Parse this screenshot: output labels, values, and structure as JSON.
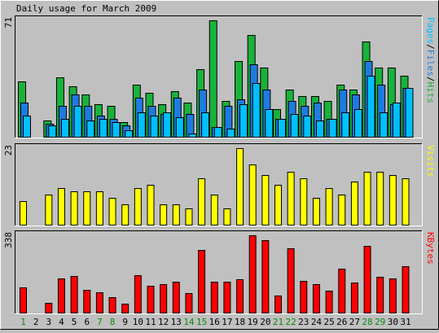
{
  "title": "Daily usage for March 2009",
  "colors": {
    "background": "#c0c0c0",
    "panel": "#c0c0c0",
    "hits": "#19b23a",
    "files": "#1e7be0",
    "pages": "#00bfff",
    "visits": "#ffff00",
    "kbytes": "#ff0000",
    "weekday_label": "#000000",
    "weekend_label": "#0a8a0a"
  },
  "chart_data": [
    {
      "type": "bar",
      "panel": "hits-files-pages",
      "ymax_label": "71",
      "ymax": 71,
      "right_label": [
        {
          "text": "Pages",
          "color": "#00bfff"
        },
        {
          "text": "/",
          "color": "#000000"
        },
        {
          "text": "Files",
          "color": "#1e7be0"
        },
        {
          "text": "/",
          "color": "#000000"
        },
        {
          "text": "Hits",
          "color": "#19b23a"
        }
      ],
      "categories": [
        "1",
        "2",
        "3",
        "4",
        "5",
        "6",
        "7",
        "8",
        "9",
        "10",
        "11",
        "12",
        "13",
        "14",
        "15",
        "16",
        "17",
        "18",
        "19",
        "20",
        "21",
        "22",
        "23",
        "24",
        "25",
        "26",
        "27",
        "28",
        "29",
        "30",
        "31"
      ],
      "series": [
        {
          "name": "Hits",
          "color": "#19b23a",
          "values": [
            34,
            0,
            10,
            36,
            31,
            26,
            20,
            19,
            9,
            32,
            27,
            20,
            28,
            21,
            41,
            71,
            22,
            46,
            62,
            42,
            17,
            29,
            25,
            25,
            22,
            32,
            29,
            58,
            42,
            42,
            37
          ]
        },
        {
          "name": "Files",
          "color": "#1e7be0",
          "values": [
            21,
            0,
            8,
            19,
            26,
            19,
            13,
            11,
            7,
            24,
            19,
            14,
            24,
            14,
            29,
            6,
            19,
            23,
            44,
            29,
            11,
            22,
            19,
            21,
            11,
            29,
            26,
            46,
            32,
            20,
            30
          ]
        },
        {
          "name": "Pages",
          "color": "#00bfff",
          "values": [
            13,
            0,
            7,
            11,
            19,
            10,
            11,
            9,
            4,
            15,
            13,
            15,
            12,
            2,
            15,
            6,
            5,
            20,
            33,
            17,
            11,
            14,
            13,
            10,
            11,
            15,
            17,
            37,
            15,
            21,
            30
          ]
        }
      ]
    },
    {
      "type": "bar",
      "panel": "visits",
      "ymax_label": "23",
      "ymax": 23,
      "right_label": [
        {
          "text": "Visits",
          "color": "#ffff00"
        }
      ],
      "categories": [
        "1",
        "2",
        "3",
        "4",
        "5",
        "6",
        "7",
        "8",
        "9",
        "10",
        "11",
        "12",
        "13",
        "14",
        "15",
        "16",
        "17",
        "18",
        "19",
        "20",
        "21",
        "22",
        "23",
        "24",
        "25",
        "26",
        "27",
        "28",
        "29",
        "30",
        "31"
      ],
      "series": [
        {
          "name": "Visits",
          "color": "#ffff00",
          "values": [
            7,
            0,
            9,
            11,
            10,
            10,
            10,
            8,
            6,
            11,
            12,
            6,
            6,
            5,
            14,
            9,
            5,
            23,
            18,
            15,
            12,
            16,
            14,
            8,
            11,
            9,
            13,
            16,
            16,
            15,
            14
          ]
        }
      ]
    },
    {
      "type": "bar",
      "panel": "kbytes",
      "ymax_label": "338",
      "ymax": 338,
      "right_label": [
        {
          "text": "KBytes",
          "color": "#ff0000"
        }
      ],
      "categories": [
        "1",
        "2",
        "3",
        "4",
        "5",
        "6",
        "7",
        "8",
        "9",
        "10",
        "11",
        "12",
        "13",
        "14",
        "15",
        "16",
        "17",
        "18",
        "19",
        "20",
        "21",
        "22",
        "23",
        "24",
        "25",
        "26",
        "27",
        "28",
        "29",
        "30",
        "31"
      ],
      "series": [
        {
          "name": "KBytes",
          "color": "#ff0000",
          "values": [
            109,
            0,
            43,
            150,
            160,
            100,
            90,
            67,
            39,
            163,
            116,
            125,
            136,
            87,
            275,
            134,
            135,
            145,
            338,
            315,
            76,
            282,
            137,
            123,
            96,
            191,
            132,
            292,
            155,
            148,
            203
          ]
        }
      ]
    }
  ],
  "x_axis": {
    "labels": [
      "1",
      "2",
      "3",
      "4",
      "5",
      "6",
      "7",
      "8",
      "9",
      "10",
      "11",
      "12",
      "13",
      "14",
      "15",
      "16",
      "17",
      "18",
      "19",
      "20",
      "21",
      "22",
      "23",
      "24",
      "25",
      "26",
      "27",
      "28",
      "29",
      "30",
      "31"
    ],
    "weekend_days": [
      "1",
      "7",
      "8",
      "14",
      "15",
      "21",
      "22",
      "28",
      "29"
    ]
  }
}
